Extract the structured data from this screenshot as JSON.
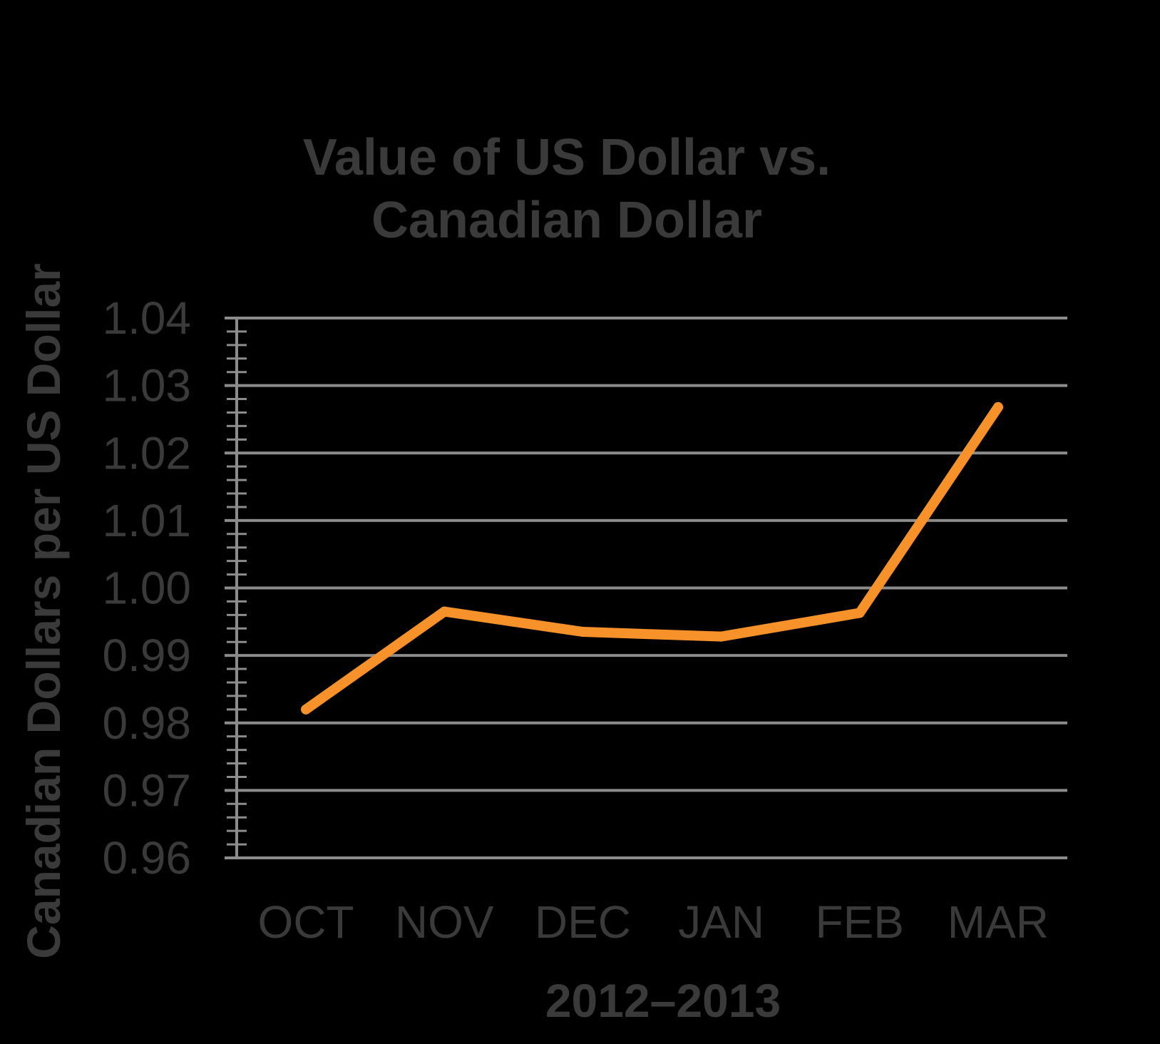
{
  "chart_data": {
    "type": "line",
    "title_lines": [
      "Value of US Dollar vs.",
      "Canadian Dollar"
    ],
    "xlabel": "2012–2013",
    "ylabel": "Canadian Dollars per US Dollar",
    "categories": [
      "OCT",
      "NOV",
      "DEC",
      "JAN",
      "FEB",
      "MAR"
    ],
    "series": [
      {
        "values": [
          0.982,
          0.9965,
          0.9935,
          0.9928,
          0.9963,
          1.0268
        ]
      }
    ],
    "ylim": [
      0.96,
      1.04
    ],
    "yticks": [
      "0.96",
      "0.97",
      "0.98",
      "0.99",
      "1.00",
      "1.01",
      "1.02",
      "1.03",
      "1.04"
    ],
    "grid": true,
    "legend": "none"
  },
  "colors": {
    "background": "#000000",
    "line": "#F7912A",
    "text": "#3a3a3a",
    "grid": "#8c8c8c"
  }
}
